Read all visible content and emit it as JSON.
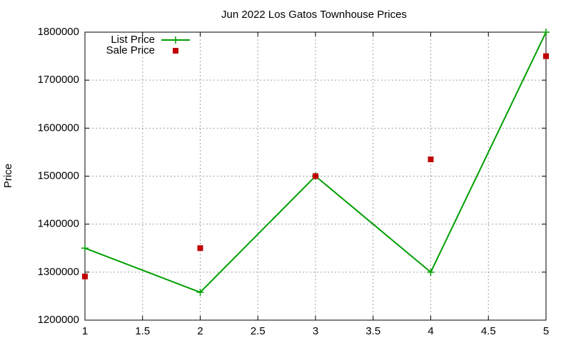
{
  "chart_data": {
    "type": "line",
    "title": "Jun 2022 Los Gatos Townhouse Prices",
    "y_label": "Price",
    "x": [
      1,
      2,
      3,
      4,
      5
    ],
    "series": [
      {
        "name": "List Price",
        "color": "#009e00",
        "line": true,
        "marker": "plus",
        "values": [
          1350000,
          1258000,
          1500000,
          1300000,
          1800000
        ]
      },
      {
        "name": "Sale Price",
        "color": "#c00000",
        "line": false,
        "marker": "square",
        "values": [
          1291000,
          1350000,
          1500000,
          1535000,
          1750000
        ]
      }
    ],
    "xlim": [
      1,
      5
    ],
    "xticks": [
      1,
      1.5,
      2,
      2.5,
      3,
      3.5,
      4,
      4.5,
      5
    ],
    "ylim": [
      1200000,
      1800000
    ],
    "yticks": [
      1200000,
      1300000,
      1400000,
      1500000,
      1600000,
      1700000,
      1800000
    ],
    "grid": true,
    "legend": "top-left"
  }
}
